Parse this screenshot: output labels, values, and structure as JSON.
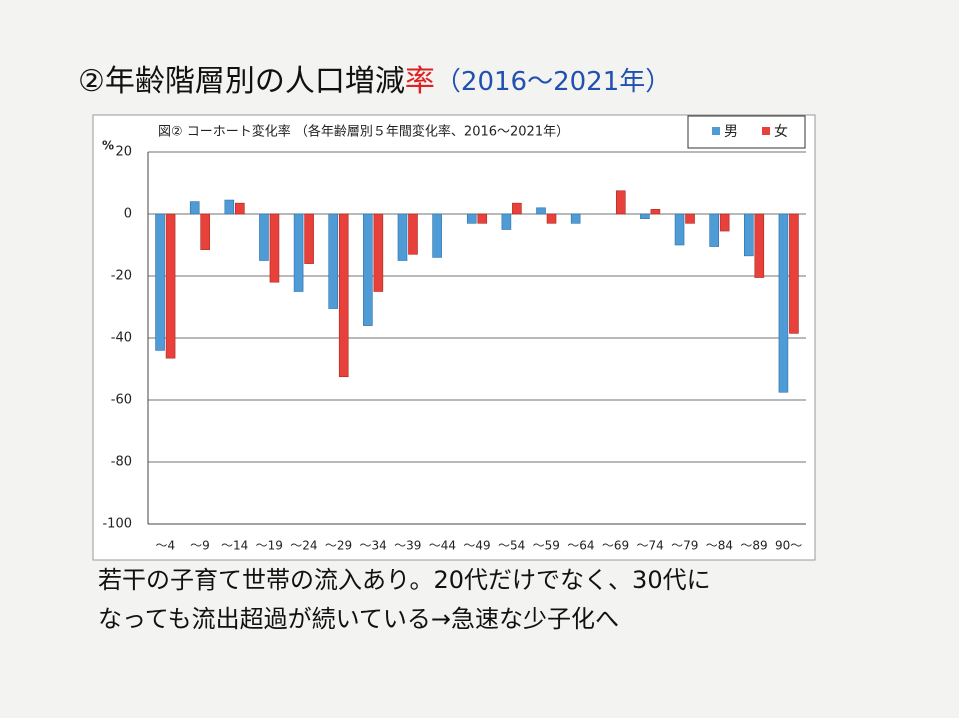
{
  "chart_data": {
    "type": "bar",
    "title": [
      "②年齢階層別の人口増減",
      "率",
      "（2016〜2021年）"
    ],
    "subtitle": "図②  コーホート変化率  （各年齢層別５年間変化率、2016〜2021年）",
    "y_label": "%",
    "categories": [
      "～4",
      "～9",
      "～14",
      "～19",
      "～24",
      "～29",
      "～34",
      "～39",
      "～44",
      "～49",
      "～54",
      "～59",
      "～64",
      "～69",
      "～74",
      "～79",
      "～84",
      "～89",
      "90～"
    ],
    "series": [
      {
        "name": "男",
        "color": "#4f9bd6",
        "values": [
          -44,
          4,
          4.5,
          -15,
          -25,
          -30.5,
          -36,
          -15,
          -14,
          -3,
          -5,
          2,
          -3,
          0,
          -1.5,
          -10,
          -10.5,
          -13.5,
          -57.5
        ]
      },
      {
        "name": "女",
        "color": "#e8403a",
        "values": [
          -46.5,
          -11.5,
          3.5,
          -22,
          -16,
          -52.5,
          -25,
          -13,
          0,
          -3,
          3.5,
          -3,
          0,
          7.5,
          1.5,
          -3,
          -5.5,
          -20.5,
          -38.5
        ]
      }
    ],
    "ylim": [
      -100,
      20
    ],
    "yticks": [
      20,
      0,
      -20,
      -40,
      -60,
      -80,
      -100
    ],
    "grid": true,
    "legend": "top-right",
    "caption": [
      "若干の子育て世帯の流入あり。20代だけでなく、30代に",
      "なっても流出超過が続いている→急速な少子化へ"
    ]
  }
}
